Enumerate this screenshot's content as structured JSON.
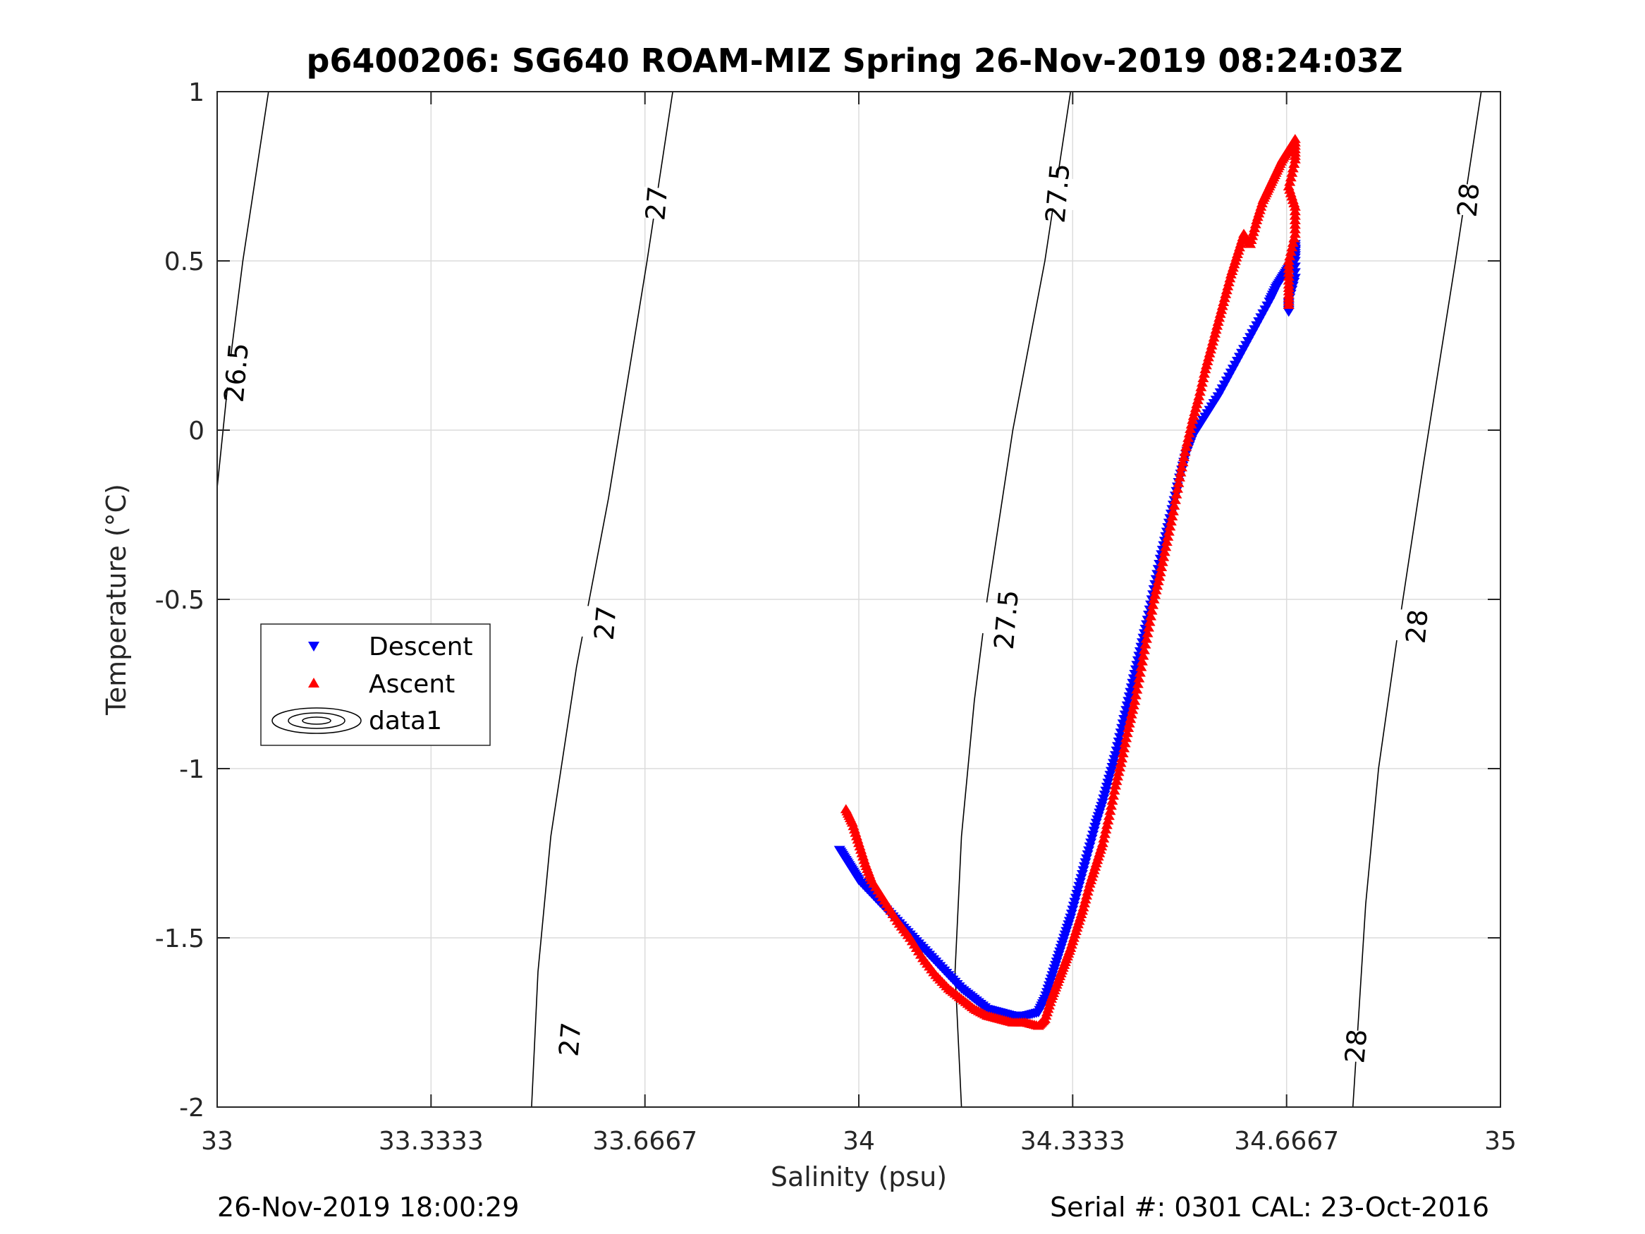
{
  "chart_data": {
    "type": "scatter",
    "title": "p6400206: SG640 ROAM-MIZ Spring 26-Nov-2019 08:24:03Z",
    "xlabel": "Salinity (psu)",
    "ylabel": "Temperature (°C)",
    "xlim": [
      33,
      35
    ],
    "ylim": [
      -2,
      1
    ],
    "x_ticks": [
      33,
      33.3333,
      33.6667,
      34,
      34.3333,
      34.6667,
      35
    ],
    "x_tick_labels": [
      "33",
      "33.3333",
      "33.6667",
      "34",
      "34.3333",
      "34.6667",
      "35"
    ],
    "y_ticks": [
      -2,
      -1.5,
      -1,
      -0.5,
      0,
      0.5,
      1
    ],
    "y_tick_labels": [
      "-2",
      "-1.5",
      "-1",
      "-0.5",
      "0",
      "0.5",
      "1"
    ],
    "grid": true,
    "legend_position": "center-left",
    "legend": [
      "Descent",
      "Ascent",
      "data1"
    ],
    "colors": {
      "descent": "#0000ff",
      "ascent": "#ff0000",
      "contour": "#000000",
      "grid": "#dcdcdc"
    },
    "series": [
      {
        "name": "Descent",
        "marker": "triangle-down",
        "points": [
          [
            33.97,
            -1.24
          ],
          [
            33.98,
            -1.27
          ],
          [
            33.99,
            -1.3
          ],
          [
            34.0,
            -1.33
          ],
          [
            34.02,
            -1.37
          ],
          [
            34.04,
            -1.41
          ],
          [
            34.06,
            -1.45
          ],
          [
            34.08,
            -1.49
          ],
          [
            34.1,
            -1.53
          ],
          [
            34.12,
            -1.57
          ],
          [
            34.14,
            -1.61
          ],
          [
            34.16,
            -1.65
          ],
          [
            34.18,
            -1.68
          ],
          [
            34.2,
            -1.71
          ],
          [
            34.22,
            -1.72
          ],
          [
            34.24,
            -1.73
          ],
          [
            34.26,
            -1.73
          ],
          [
            34.28,
            -1.72
          ],
          [
            34.29,
            -1.68
          ],
          [
            34.3,
            -1.62
          ],
          [
            34.31,
            -1.56
          ],
          [
            34.32,
            -1.5
          ],
          [
            34.33,
            -1.44
          ],
          [
            34.34,
            -1.37
          ],
          [
            34.35,
            -1.3
          ],
          [
            34.36,
            -1.23
          ],
          [
            34.37,
            -1.16
          ],
          [
            34.38,
            -1.1
          ],
          [
            34.39,
            -1.03
          ],
          [
            34.4,
            -0.96
          ],
          [
            34.41,
            -0.88
          ],
          [
            34.42,
            -0.8
          ],
          [
            34.43,
            -0.72
          ],
          [
            34.44,
            -0.64
          ],
          [
            34.45,
            -0.56
          ],
          [
            34.46,
            -0.47
          ],
          [
            34.47,
            -0.38
          ],
          [
            34.48,
            -0.3
          ],
          [
            34.49,
            -0.22
          ],
          [
            34.5,
            -0.14
          ],
          [
            34.51,
            -0.07
          ],
          [
            34.52,
            -0.02
          ],
          [
            34.54,
            0.04
          ],
          [
            34.56,
            0.1
          ],
          [
            34.58,
            0.17
          ],
          [
            34.6,
            0.24
          ],
          [
            34.62,
            0.31
          ],
          [
            34.64,
            0.38
          ],
          [
            34.65,
            0.42
          ],
          [
            34.66,
            0.45
          ],
          [
            34.67,
            0.48
          ],
          [
            34.68,
            0.51
          ],
          [
            34.68,
            0.55
          ],
          [
            34.68,
            0.45
          ],
          [
            34.67,
            0.38
          ],
          [
            34.67,
            0.35
          ]
        ]
      },
      {
        "name": "Ascent",
        "marker": "triangle-up",
        "points": [
          [
            33.98,
            -1.12
          ],
          [
            33.99,
            -1.16
          ],
          [
            34.0,
            -1.22
          ],
          [
            34.01,
            -1.28
          ],
          [
            34.02,
            -1.33
          ],
          [
            34.04,
            -1.39
          ],
          [
            34.06,
            -1.45
          ],
          [
            34.08,
            -1.5
          ],
          [
            34.1,
            -1.56
          ],
          [
            34.12,
            -1.61
          ],
          [
            34.14,
            -1.65
          ],
          [
            34.16,
            -1.68
          ],
          [
            34.18,
            -1.71
          ],
          [
            34.2,
            -1.73
          ],
          [
            34.22,
            -1.74
          ],
          [
            34.24,
            -1.75
          ],
          [
            34.26,
            -1.75
          ],
          [
            34.28,
            -1.76
          ],
          [
            34.29,
            -1.74
          ],
          [
            34.3,
            -1.68
          ],
          [
            34.31,
            -1.63
          ],
          [
            34.32,
            -1.58
          ],
          [
            34.33,
            -1.53
          ],
          [
            34.34,
            -1.47
          ],
          [
            34.35,
            -1.41
          ],
          [
            34.36,
            -1.34
          ],
          [
            34.37,
            -1.28
          ],
          [
            34.38,
            -1.22
          ],
          [
            34.39,
            -1.14
          ],
          [
            34.4,
            -1.05
          ],
          [
            34.41,
            -0.97
          ],
          [
            34.42,
            -0.88
          ],
          [
            34.43,
            -0.8
          ],
          [
            34.44,
            -0.7
          ],
          [
            34.45,
            -0.6
          ],
          [
            34.46,
            -0.5
          ],
          [
            34.47,
            -0.42
          ],
          [
            34.48,
            -0.33
          ],
          [
            34.49,
            -0.24
          ],
          [
            34.5,
            -0.14
          ],
          [
            34.51,
            -0.05
          ],
          [
            34.52,
            0.03
          ],
          [
            34.53,
            0.1
          ],
          [
            34.54,
            0.18
          ],
          [
            34.55,
            0.25
          ],
          [
            34.56,
            0.32
          ],
          [
            34.57,
            0.39
          ],
          [
            34.58,
            0.46
          ],
          [
            34.59,
            0.52
          ],
          [
            34.6,
            0.58
          ],
          [
            34.61,
            0.55
          ],
          [
            34.62,
            0.62
          ],
          [
            34.63,
            0.68
          ],
          [
            34.64,
            0.72
          ],
          [
            34.65,
            0.76
          ],
          [
            34.66,
            0.8
          ],
          [
            34.67,
            0.83
          ],
          [
            34.68,
            0.86
          ],
          [
            34.68,
            0.8
          ],
          [
            34.67,
            0.72
          ],
          [
            34.68,
            0.66
          ],
          [
            34.68,
            0.58
          ],
          [
            34.67,
            0.5
          ],
          [
            34.67,
            0.43
          ],
          [
            34.67,
            0.37
          ]
        ]
      }
    ],
    "density_contours": [
      {
        "label": "26.5",
        "points": [
          [
            33.08,
            1.0
          ],
          [
            33.04,
            0.5
          ],
          [
            33.02,
            0.2
          ],
          [
            33.0,
            -0.17
          ]
        ],
        "label_positions": [
          [
            33.03,
            0.17
          ]
        ]
      },
      {
        "label": "27",
        "points": [
          [
            33.71,
            1.0
          ],
          [
            33.67,
            0.5
          ],
          [
            33.61,
            -0.2
          ],
          [
            33.56,
            -0.7
          ],
          [
            33.52,
            -1.2
          ],
          [
            33.5,
            -1.6
          ],
          [
            33.49,
            -2.0
          ]
        ],
        "label_positions": [
          [
            33.685,
            0.67
          ],
          [
            33.605,
            -0.57
          ],
          [
            33.55,
            -1.8
          ]
        ]
      },
      {
        "label": "27.5",
        "points": [
          [
            34.33,
            1.0
          ],
          [
            34.29,
            0.5
          ],
          [
            34.24,
            0.0
          ],
          [
            34.2,
            -0.5
          ],
          [
            34.18,
            -0.8
          ],
          [
            34.16,
            -1.2
          ],
          [
            34.15,
            -1.6
          ],
          [
            34.16,
            -2.0
          ]
        ],
        "label_positions": [
          [
            34.31,
            0.7
          ],
          [
            34.23,
            -0.56
          ]
        ]
      },
      {
        "label": "28",
        "points": [
          [
            34.97,
            1.0
          ],
          [
            34.93,
            0.5
          ],
          [
            34.88,
            -0.1
          ],
          [
            34.84,
            -0.6
          ],
          [
            34.81,
            -1.0
          ],
          [
            34.79,
            -1.4
          ],
          [
            34.78,
            -1.7
          ],
          [
            34.77,
            -2.0
          ]
        ],
        "label_positions": [
          [
            34.95,
            0.68
          ],
          [
            34.87,
            -0.58
          ],
          [
            34.775,
            -1.82
          ]
        ]
      }
    ]
  },
  "footer": {
    "timestamp": "26-Nov-2019 18:00:29",
    "serial": "Serial #: 0301  CAL: 23-Oct-2016"
  }
}
